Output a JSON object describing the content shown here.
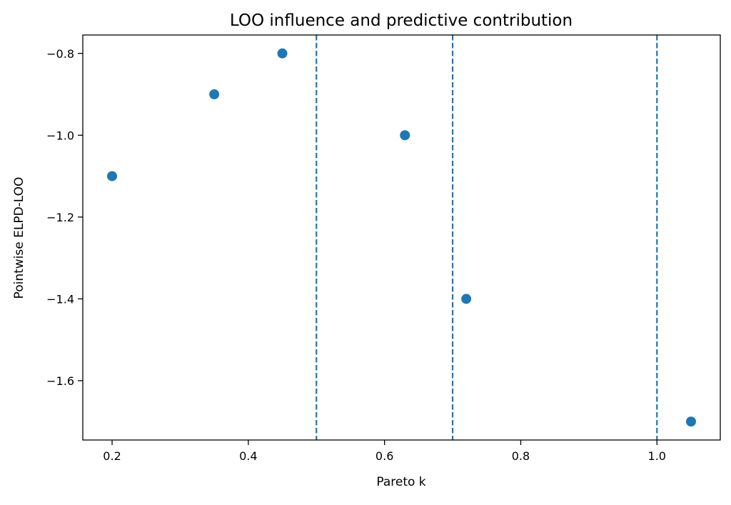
{
  "chart_data": {
    "type": "scatter",
    "title": "LOO influence and predictive contribution",
    "xlabel": "Pareto k",
    "ylabel": "Pointwise ELPD-LOO",
    "xlim": [
      0.157,
      1.093
    ],
    "ylim": [
      -1.745,
      -0.755
    ],
    "x_ticks": [
      0.2,
      0.4,
      0.6,
      0.8,
      1.0
    ],
    "x_tick_labels": [
      "0.2",
      "0.4",
      "0.6",
      "0.8",
      "1.0"
    ],
    "y_ticks": [
      -0.8,
      -1.0,
      -1.2,
      -1.4,
      -1.6
    ],
    "y_tick_labels": [
      "−0.8",
      "−1.0",
      "−1.2",
      "−1.4",
      "−1.6"
    ],
    "points": [
      {
        "x": 0.2,
        "y": -1.1
      },
      {
        "x": 0.35,
        "y": -0.9
      },
      {
        "x": 0.45,
        "y": -0.8
      },
      {
        "x": 0.63,
        "y": -1.0
      },
      {
        "x": 0.72,
        "y": -1.4
      },
      {
        "x": 1.05,
        "y": -1.7
      }
    ],
    "vlines": [
      0.5,
      0.7,
      1.0
    ],
    "vline_style": "dashed",
    "grid": false,
    "legend": "none",
    "colors": {
      "points": "#1f77b4",
      "vlines": "#1f77b4",
      "axes": "#000000"
    }
  }
}
